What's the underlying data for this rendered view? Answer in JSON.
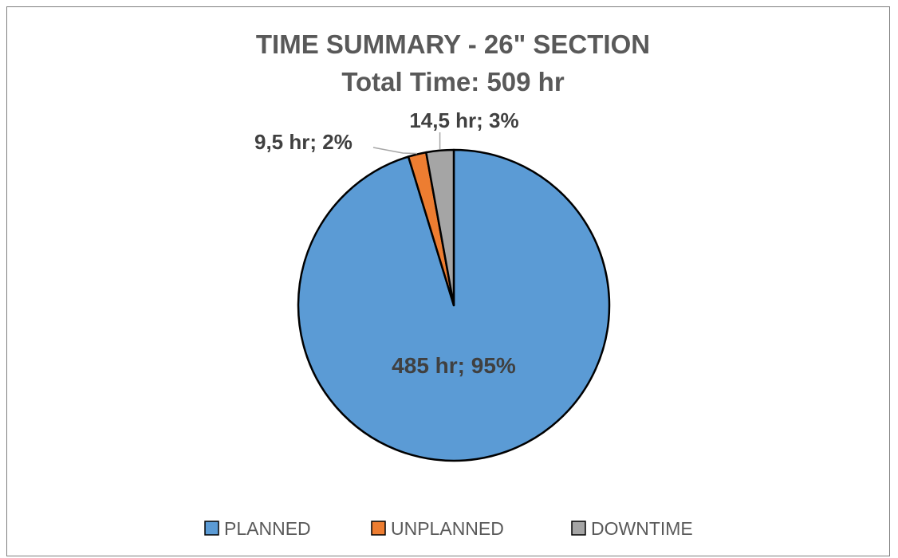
{
  "chart_data": {
    "type": "pie",
    "title": "TIME SUMMARY - 26\" SECTION",
    "subtitle": "Total Time: 509 hr",
    "categories": [
      "PLANNED",
      "UNPLANNED",
      "DOWNTIME"
    ],
    "values": [
      485,
      9.5,
      14.5
    ],
    "data_labels": [
      "485 hr; 95%",
      "9,5 hr; 2%",
      "14,5 hr; 3%"
    ],
    "colors": [
      "#5b9bd5",
      "#ed7d31",
      "#a5a5a5"
    ],
    "legend_placement": "bottom"
  }
}
